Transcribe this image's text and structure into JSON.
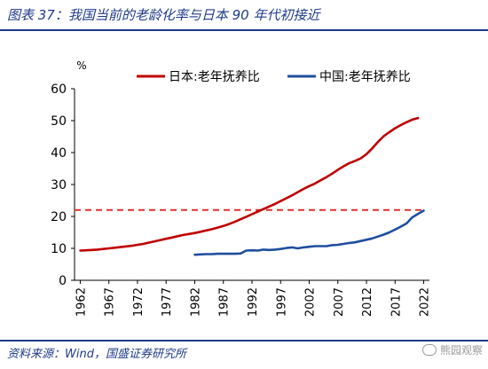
{
  "figure": {
    "title": "图表 37：我国当前的老龄化率与日本 90 年代初接近",
    "source": "资料来源：Wind，国盛证券研究所",
    "watermark": "熊园观察"
  },
  "colors": {
    "japan": "#c00000",
    "china": "#1f4e9e",
    "reference": "#e03030",
    "text": "#000000",
    "accent": "#1f3a8a"
  },
  "chart_data": {
    "type": "line",
    "ylabel": "%",
    "ylim": [
      0,
      60
    ],
    "yticks": [
      0,
      10,
      20,
      30,
      40,
      50,
      60
    ],
    "xlim": [
      1961,
      2023
    ],
    "xticks": [
      1962,
      1967,
      1972,
      1977,
      1982,
      1987,
      1992,
      1997,
      2002,
      2007,
      2012,
      2017,
      2022
    ],
    "legend_position": "top",
    "reference_line": {
      "y": 22,
      "style": "dashed"
    },
    "series": [
      {
        "name": "日本:老年抚养比",
        "color_key": "japan",
        "x": [
          1962,
          1963,
          1964,
          1965,
          1966,
          1967,
          1968,
          1969,
          1970,
          1971,
          1972,
          1973,
          1974,
          1975,
          1976,
          1977,
          1978,
          1979,
          1980,
          1981,
          1982,
          1983,
          1984,
          1985,
          1986,
          1987,
          1988,
          1989,
          1990,
          1991,
          1992,
          1993,
          1994,
          1995,
          1996,
          1997,
          1998,
          1999,
          2000,
          2001,
          2002,
          2003,
          2004,
          2005,
          2006,
          2007,
          2008,
          2009,
          2010,
          2011,
          2012,
          2013,
          2014,
          2015,
          2016,
          2017,
          2018,
          2019,
          2020,
          2021
        ],
        "y": [
          9.3,
          9.4,
          9.5,
          9.6,
          9.8,
          10.0,
          10.2,
          10.4,
          10.6,
          10.8,
          11.1,
          11.4,
          11.8,
          12.2,
          12.6,
          13.0,
          13.4,
          13.8,
          14.2,
          14.5,
          14.8,
          15.2,
          15.6,
          16.0,
          16.5,
          17.0,
          17.6,
          18.3,
          19.1,
          19.9,
          20.7,
          21.5,
          22.3,
          23.1,
          23.9,
          24.8,
          25.7,
          26.6,
          27.6,
          28.6,
          29.5,
          30.3,
          31.3,
          32.3,
          33.4,
          34.6,
          35.7,
          36.7,
          37.4,
          38.2,
          39.5,
          41.3,
          43.3,
          45.1,
          46.4,
          47.6,
          48.6,
          49.5,
          50.3,
          50.8
        ]
      },
      {
        "name": "中国:老年抚养比",
        "color_key": "china",
        "x": [
          1982,
          1983,
          1984,
          1985,
          1986,
          1987,
          1988,
          1989,
          1990,
          1991,
          1992,
          1993,
          1994,
          1995,
          1996,
          1997,
          1998,
          1999,
          2000,
          2001,
          2002,
          2003,
          2004,
          2005,
          2006,
          2007,
          2008,
          2009,
          2010,
          2011,
          2012,
          2013,
          2014,
          2015,
          2016,
          2017,
          2018,
          2019,
          2020,
          2021,
          2022
        ],
        "y": [
          8.0,
          8.1,
          8.2,
          8.2,
          8.3,
          8.3,
          8.3,
          8.3,
          8.4,
          9.3,
          9.4,
          9.3,
          9.6,
          9.5,
          9.6,
          9.8,
          10.1,
          10.3,
          10.0,
          10.3,
          10.5,
          10.7,
          10.7,
          10.7,
          11.0,
          11.1,
          11.4,
          11.7,
          11.9,
          12.3,
          12.7,
          13.1,
          13.7,
          14.3,
          15.0,
          15.9,
          16.8,
          17.8,
          19.7,
          20.8,
          21.8
        ]
      }
    ]
  }
}
